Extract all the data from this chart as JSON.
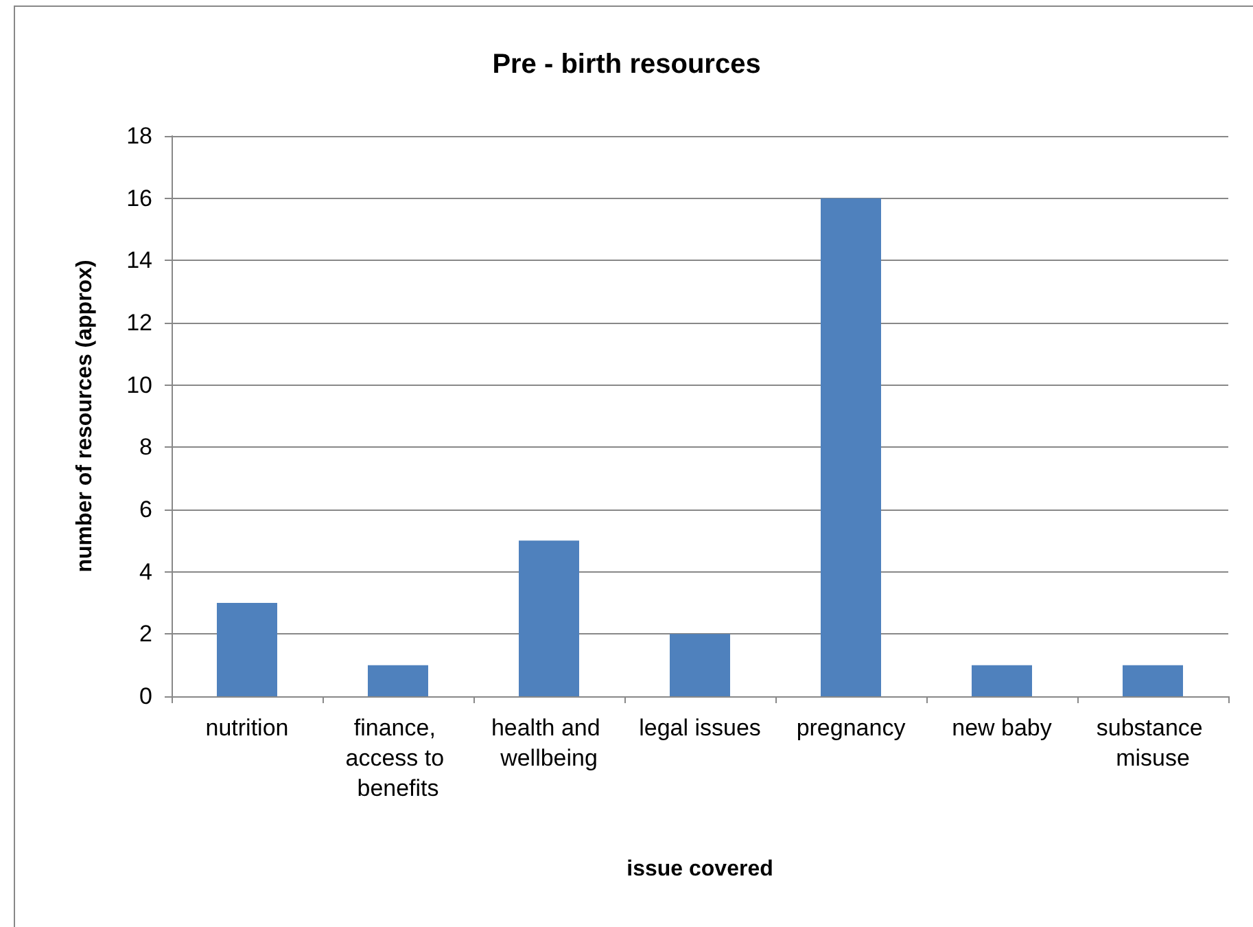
{
  "chart_data": {
    "type": "bar",
    "title": "Pre - birth resources",
    "xlabel": "issue covered",
    "ylabel": "number of resources (approx)",
    "categories": [
      "nutrition",
      "finance, access to benefits",
      "health and wellbeing",
      "legal issues",
      "pregnancy",
      "new baby",
      "substance misuse"
    ],
    "series": [
      {
        "color": "#4f81bd",
        "values": [
          3,
          1,
          5,
          2,
          16,
          1,
          1
        ]
      }
    ],
    "ylim": [
      0,
      18
    ],
    "yticks": [
      0,
      2,
      4,
      6,
      8,
      10,
      12,
      14,
      16,
      18
    ],
    "grid": "y"
  }
}
